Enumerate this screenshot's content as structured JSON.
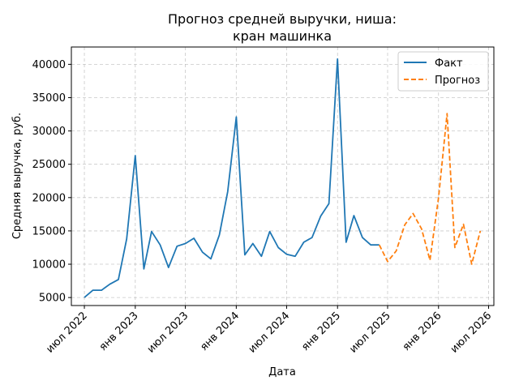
{
  "chart_data": {
    "type": "line",
    "title_lines": [
      "Прогноз средней выручки, ниша:",
      "кран машинка"
    ],
    "xlabel": "Дата",
    "ylabel": "Средняя выручка, руб.",
    "xlim": [
      "2022-05-15",
      "2026-07-20"
    ],
    "ylim": [
      3800,
      42600
    ],
    "x_ticks": [
      {
        "date": "2022-07-01",
        "label": "июл 2022"
      },
      {
        "date": "2023-01-01",
        "label": "янв 2023"
      },
      {
        "date": "2023-07-01",
        "label": "июл 2023"
      },
      {
        "date": "2024-01-01",
        "label": "янв 2024"
      },
      {
        "date": "2024-07-01",
        "label": "июл 2024"
      },
      {
        "date": "2025-01-01",
        "label": "янв 2025"
      },
      {
        "date": "2025-07-01",
        "label": "июл 2025"
      },
      {
        "date": "2026-01-01",
        "label": "янв 2026"
      },
      {
        "date": "2026-07-01",
        "label": "июл 2026"
      }
    ],
    "y_ticks": [
      {
        "value": 5000,
        "label": "5000"
      },
      {
        "value": 10000,
        "label": "10000"
      },
      {
        "value": 15000,
        "label": "15000"
      },
      {
        "value": 20000,
        "label": "20000"
      },
      {
        "value": 25000,
        "label": "25000"
      },
      {
        "value": 30000,
        "label": "30000"
      },
      {
        "value": 35000,
        "label": "35000"
      },
      {
        "value": 40000,
        "label": "40000"
      }
    ],
    "grid": true,
    "legend_position": "top-right",
    "series": [
      {
        "name": "Факт",
        "color": "#1f77b4",
        "style": "solid",
        "x": [
          "2022-07-01",
          "2022-08-01",
          "2022-09-01",
          "2022-10-01",
          "2022-11-01",
          "2022-12-01",
          "2023-01-01",
          "2023-02-01",
          "2023-03-01",
          "2023-04-01",
          "2023-05-01",
          "2023-06-01",
          "2023-07-01",
          "2023-08-01",
          "2023-09-01",
          "2023-10-01",
          "2023-11-01",
          "2023-12-01",
          "2024-01-01",
          "2024-02-01",
          "2024-03-01",
          "2024-04-01",
          "2024-05-01",
          "2024-06-01",
          "2024-07-01",
          "2024-08-01",
          "2024-09-01",
          "2024-10-01",
          "2024-11-01",
          "2024-12-01",
          "2025-01-01",
          "2025-02-01",
          "2025-03-01",
          "2025-04-01",
          "2025-05-01",
          "2025-06-01"
        ],
        "values": [
          5000,
          6100,
          6100,
          7000,
          7700,
          13800,
          26300,
          9300,
          14900,
          12900,
          9500,
          12700,
          13100,
          13900,
          11800,
          10800,
          14400,
          20900,
          32100,
          11400,
          13100,
          11200,
          14900,
          12500,
          11500,
          11200,
          13300,
          14000,
          17200,
          19100,
          40800,
          13300,
          17300,
          14000,
          12900,
          12900
        ]
      },
      {
        "name": "Прогноз",
        "color": "#ff7f0e",
        "style": "dashed",
        "x": [
          "2025-06-01",
          "2025-07-01",
          "2025-08-01",
          "2025-09-01",
          "2025-10-01",
          "2025-11-01",
          "2025-12-01",
          "2026-01-01",
          "2026-02-01",
          "2026-03-01",
          "2026-04-01",
          "2026-05-01",
          "2026-06-01"
        ],
        "values": [
          12900,
          10400,
          12000,
          15900,
          17600,
          15300,
          10600,
          20000,
          32600,
          12500,
          16000,
          10000,
          15000
        ]
      }
    ]
  }
}
